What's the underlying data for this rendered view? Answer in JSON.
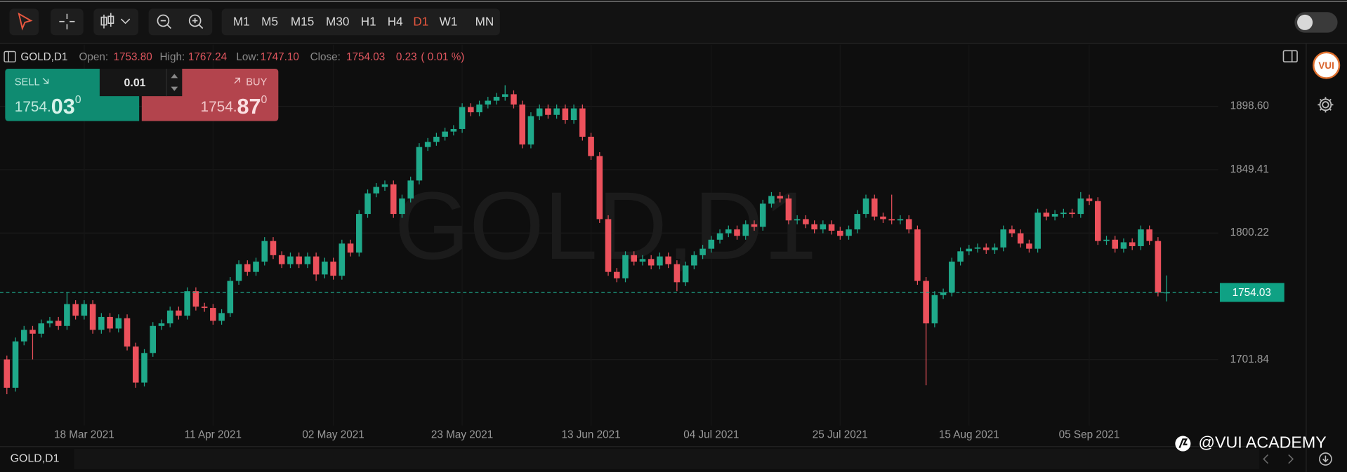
{
  "toolbar": {
    "timeframes": [
      "M1",
      "M5",
      "M15",
      "M30",
      "H1",
      "H4",
      "D1",
      "W1",
      "MN"
    ],
    "active": "D1"
  },
  "header": {
    "symbol": "GOLD,D1",
    "open_label": "Open:",
    "open": "1753.80",
    "high_label": "High:",
    "high": "1767.24",
    "low_label": "Low:",
    "low": "1747.10",
    "close_label": "Close:",
    "close": "1754.03",
    "change": "0.23",
    "change_pct": "( 0.01 %)"
  },
  "trade": {
    "sell_label": "SELL",
    "buy_label": "BUY",
    "volume": "0.01",
    "sell_price": {
      "main": "1754.",
      "big": "03",
      "sup": "0"
    },
    "buy_price": {
      "main": "1754.",
      "big": "87",
      "sup": "0"
    }
  },
  "sidebar": {
    "logo": "VUI"
  },
  "footer": {
    "symbol": "GOLD,D1",
    "watermark": "@VUI ACADEMY"
  },
  "chart_data": {
    "type": "candlestick",
    "watermark": "GOLD,D1",
    "up_color": "#1fa98a",
    "down_color": "#ec515c",
    "grid": true,
    "ylim": [
      1654.6,
      1946.5
    ],
    "yticks": [
      {
        "value": 1898.6,
        "label": "1898.60"
      },
      1849.41,
      1800.22,
      1701.84
    ],
    "current_price": 1754.03,
    "categories": [
      null,
      null,
      null,
      null,
      null,
      null,
      null,
      null,
      null,
      "18 Mar 2021",
      null,
      null,
      null,
      null,
      null,
      null,
      null,
      null,
      null,
      null,
      null,
      null,
      null,
      null,
      "11 Apr 2021",
      null,
      null,
      null,
      null,
      null,
      null,
      null,
      null,
      null,
      null,
      null,
      null,
      null,
      "02 May 2021",
      null,
      null,
      null,
      null,
      null,
      null,
      null,
      null,
      null,
      null,
      null,
      null,
      null,
      null,
      "23 May 2021",
      null,
      null,
      null,
      null,
      null,
      null,
      null,
      null,
      null,
      null,
      null,
      null,
      null,
      null,
      "13 Jun 2021",
      null,
      null,
      null,
      null,
      null,
      null,
      null,
      null,
      null,
      null,
      null,
      null,
      null,
      "04 Jul 2021",
      null,
      null,
      null,
      null,
      null,
      null,
      null,
      null,
      null,
      null,
      null,
      null,
      null,
      null,
      "25 Jul 2021",
      null,
      null,
      null,
      null,
      null,
      null,
      null,
      null,
      null,
      null,
      null,
      null,
      null,
      null,
      "15 Aug 2021",
      null,
      null,
      null,
      null,
      null,
      null,
      null,
      null,
      null,
      null,
      null,
      null,
      null,
      "05 Sep 2021",
      null,
      null,
      null,
      null,
      null,
      null,
      null,
      null,
      null
    ],
    "open": [
      1702,
      1680,
      1716,
      1725,
      1722,
      1730,
      1732,
      1728,
      1745,
      1736,
      1745,
      1725,
      1735,
      1726,
      1734,
      1712,
      1684,
      1707,
      1728,
      1730,
      1740,
      1736,
      1755,
      1743,
      1742,
      1732,
      1738,
      1763,
      1776,
      1770,
      1778,
      1794,
      1783,
      1776,
      1782,
      1776,
      1782,
      1768,
      1778,
      1767,
      1792,
      1785,
      1815,
      1831,
      1836,
      1838,
      1815,
      1827,
      1841,
      1867,
      1871,
      1875,
      1879,
      1881,
      1898,
      1894,
      1900,
      1903,
      1906,
      1908,
      1900,
      1869,
      1891,
      1897,
      1892,
      1897,
      1888,
      1897,
      1875,
      1860,
      1811,
      1770,
      1765,
      1783,
      1778,
      1780,
      1775,
      1782,
      1776,
      1762,
      1775,
      1783,
      1788,
      1795,
      1800,
      1803,
      1798,
      1807,
      1805,
      1823,
      1829,
      1827,
      1810,
      1811,
      1807,
      1803,
      1807,
      1802,
      1798,
      1803,
      1815,
      1827,
      1813,
      1811,
      1810,
      1811,
      1803,
      1763,
      1730,
      1752,
      1754,
      1778,
      1786,
      1788,
      1789,
      1787,
      1789,
      1803,
      1800,
      1792,
      1788,
      1816,
      1813,
      1815,
      1816,
      1815,
      1827,
      1825,
      1794,
      1795,
      1788,
      1793,
      1790,
      1803,
      1794,
      1753.8
    ],
    "high": [
      1705,
      1719,
      1728,
      1728,
      1733,
      1735,
      1735,
      1754,
      1748,
      1748,
      1748,
      1738,
      1738,
      1737,
      1737,
      1715,
      1710,
      1731,
      1733,
      1743,
      1743,
      1758,
      1758,
      1746,
      1745,
      1741,
      1766,
      1779,
      1779,
      1781,
      1797,
      1797,
      1786,
      1785,
      1785,
      1785,
      1785,
      1781,
      1781,
      1795,
      1795,
      1818,
      1834,
      1839,
      1841,
      1841,
      1830,
      1844,
      1870,
      1874,
      1878,
      1882,
      1884,
      1901,
      1901,
      1903,
      1906,
      1909,
      1915,
      1911,
      1903,
      1894,
      1900,
      1900,
      1900,
      1900,
      1900,
      1900,
      1878,
      1863,
      1814,
      1773,
      1786,
      1786,
      1783,
      1783,
      1785,
      1785,
      1779,
      1778,
      1786,
      1791,
      1798,
      1803,
      1806,
      1806,
      1810,
      1810,
      1826,
      1832,
      1832,
      1830,
      1814,
      1814,
      1810,
      1810,
      1810,
      1805,
      1806,
      1818,
      1830,
      1830,
      1816,
      1830,
      1814,
      1814,
      1806,
      1766,
      1755,
      1757,
      1781,
      1789,
      1791,
      1792,
      1792,
      1792,
      1806,
      1806,
      1803,
      1795,
      1819,
      1819,
      1818,
      1819,
      1819,
      1832,
      1830,
      1828,
      1798,
      1798,
      1796,
      1796,
      1806,
      1806,
      1797,
      1767.24
    ],
    "low": [
      1675,
      1677,
      1713,
      1702,
      1719,
      1727,
      1725,
      1725,
      1733,
      1733,
      1722,
      1722,
      1723,
      1723,
      1709,
      1680,
      1681,
      1704,
      1725,
      1727,
      1733,
      1733,
      1740,
      1739,
      1729,
      1729,
      1735,
      1760,
      1767,
      1767,
      1775,
      1780,
      1773,
      1773,
      1773,
      1773,
      1763,
      1765,
      1764,
      1764,
      1782,
      1782,
      1812,
      1828,
      1833,
      1812,
      1812,
      1824,
      1838,
      1864,
      1868,
      1872,
      1876,
      1878,
      1891,
      1891,
      1897,
      1900,
      1903,
      1897,
      1866,
      1866,
      1888,
      1889,
      1889,
      1885,
      1885,
      1872,
      1857,
      1808,
      1767,
      1762,
      1762,
      1775,
      1775,
      1772,
      1772,
      1773,
      1755,
      1759,
      1772,
      1780,
      1785,
      1792,
      1797,
      1795,
      1795,
      1802,
      1802,
      1820,
      1824,
      1807,
      1807,
      1804,
      1800,
      1800,
      1799,
      1795,
      1795,
      1800,
      1812,
      1810,
      1808,
      1807,
      1807,
      1800,
      1760,
      1682,
      1727,
      1749,
      1751,
      1775,
      1783,
      1785,
      1784,
      1784,
      1786,
      1797,
      1789,
      1785,
      1785,
      1810,
      1810,
      1812,
      1812,
      1812,
      1822,
      1791,
      1791,
      1785,
      1785,
      1787,
      1787,
      1791,
      1751,
      1747.1
    ],
    "close": [
      1680,
      1716,
      1725,
      1722,
      1730,
      1732,
      1728,
      1745,
      1736,
      1745,
      1725,
      1735,
      1726,
      1734,
      1712,
      1684,
      1707,
      1728,
      1730,
      1740,
      1736,
      1755,
      1743,
      1742,
      1732,
      1738,
      1763,
      1776,
      1770,
      1778,
      1794,
      1783,
      1776,
      1782,
      1776,
      1782,
      1768,
      1778,
      1767,
      1792,
      1785,
      1815,
      1831,
      1836,
      1838,
      1815,
      1827,
      1841,
      1867,
      1871,
      1875,
      1879,
      1881,
      1898,
      1894,
      1900,
      1903,
      1906,
      1908,
      1900,
      1869,
      1891,
      1897,
      1892,
      1897,
      1888,
      1897,
      1875,
      1860,
      1811,
      1770,
      1765,
      1783,
      1778,
      1780,
      1775,
      1782,
      1776,
      1762,
      1775,
      1783,
      1788,
      1795,
      1800,
      1803,
      1798,
      1807,
      1805,
      1823,
      1829,
      1827,
      1810,
      1811,
      1807,
      1803,
      1807,
      1802,
      1798,
      1803,
      1815,
      1827,
      1813,
      1811,
      1810,
      1811,
      1803,
      1763,
      1730,
      1752,
      1754,
      1778,
      1786,
      1788,
      1789,
      1787,
      1789,
      1803,
      1800,
      1792,
      1788,
      1816,
      1813,
      1815,
      1816,
      1815,
      1827,
      1825,
      1794,
      1795,
      1788,
      1793,
      1790,
      1803,
      1794,
      1754,
      1754.03
    ]
  }
}
